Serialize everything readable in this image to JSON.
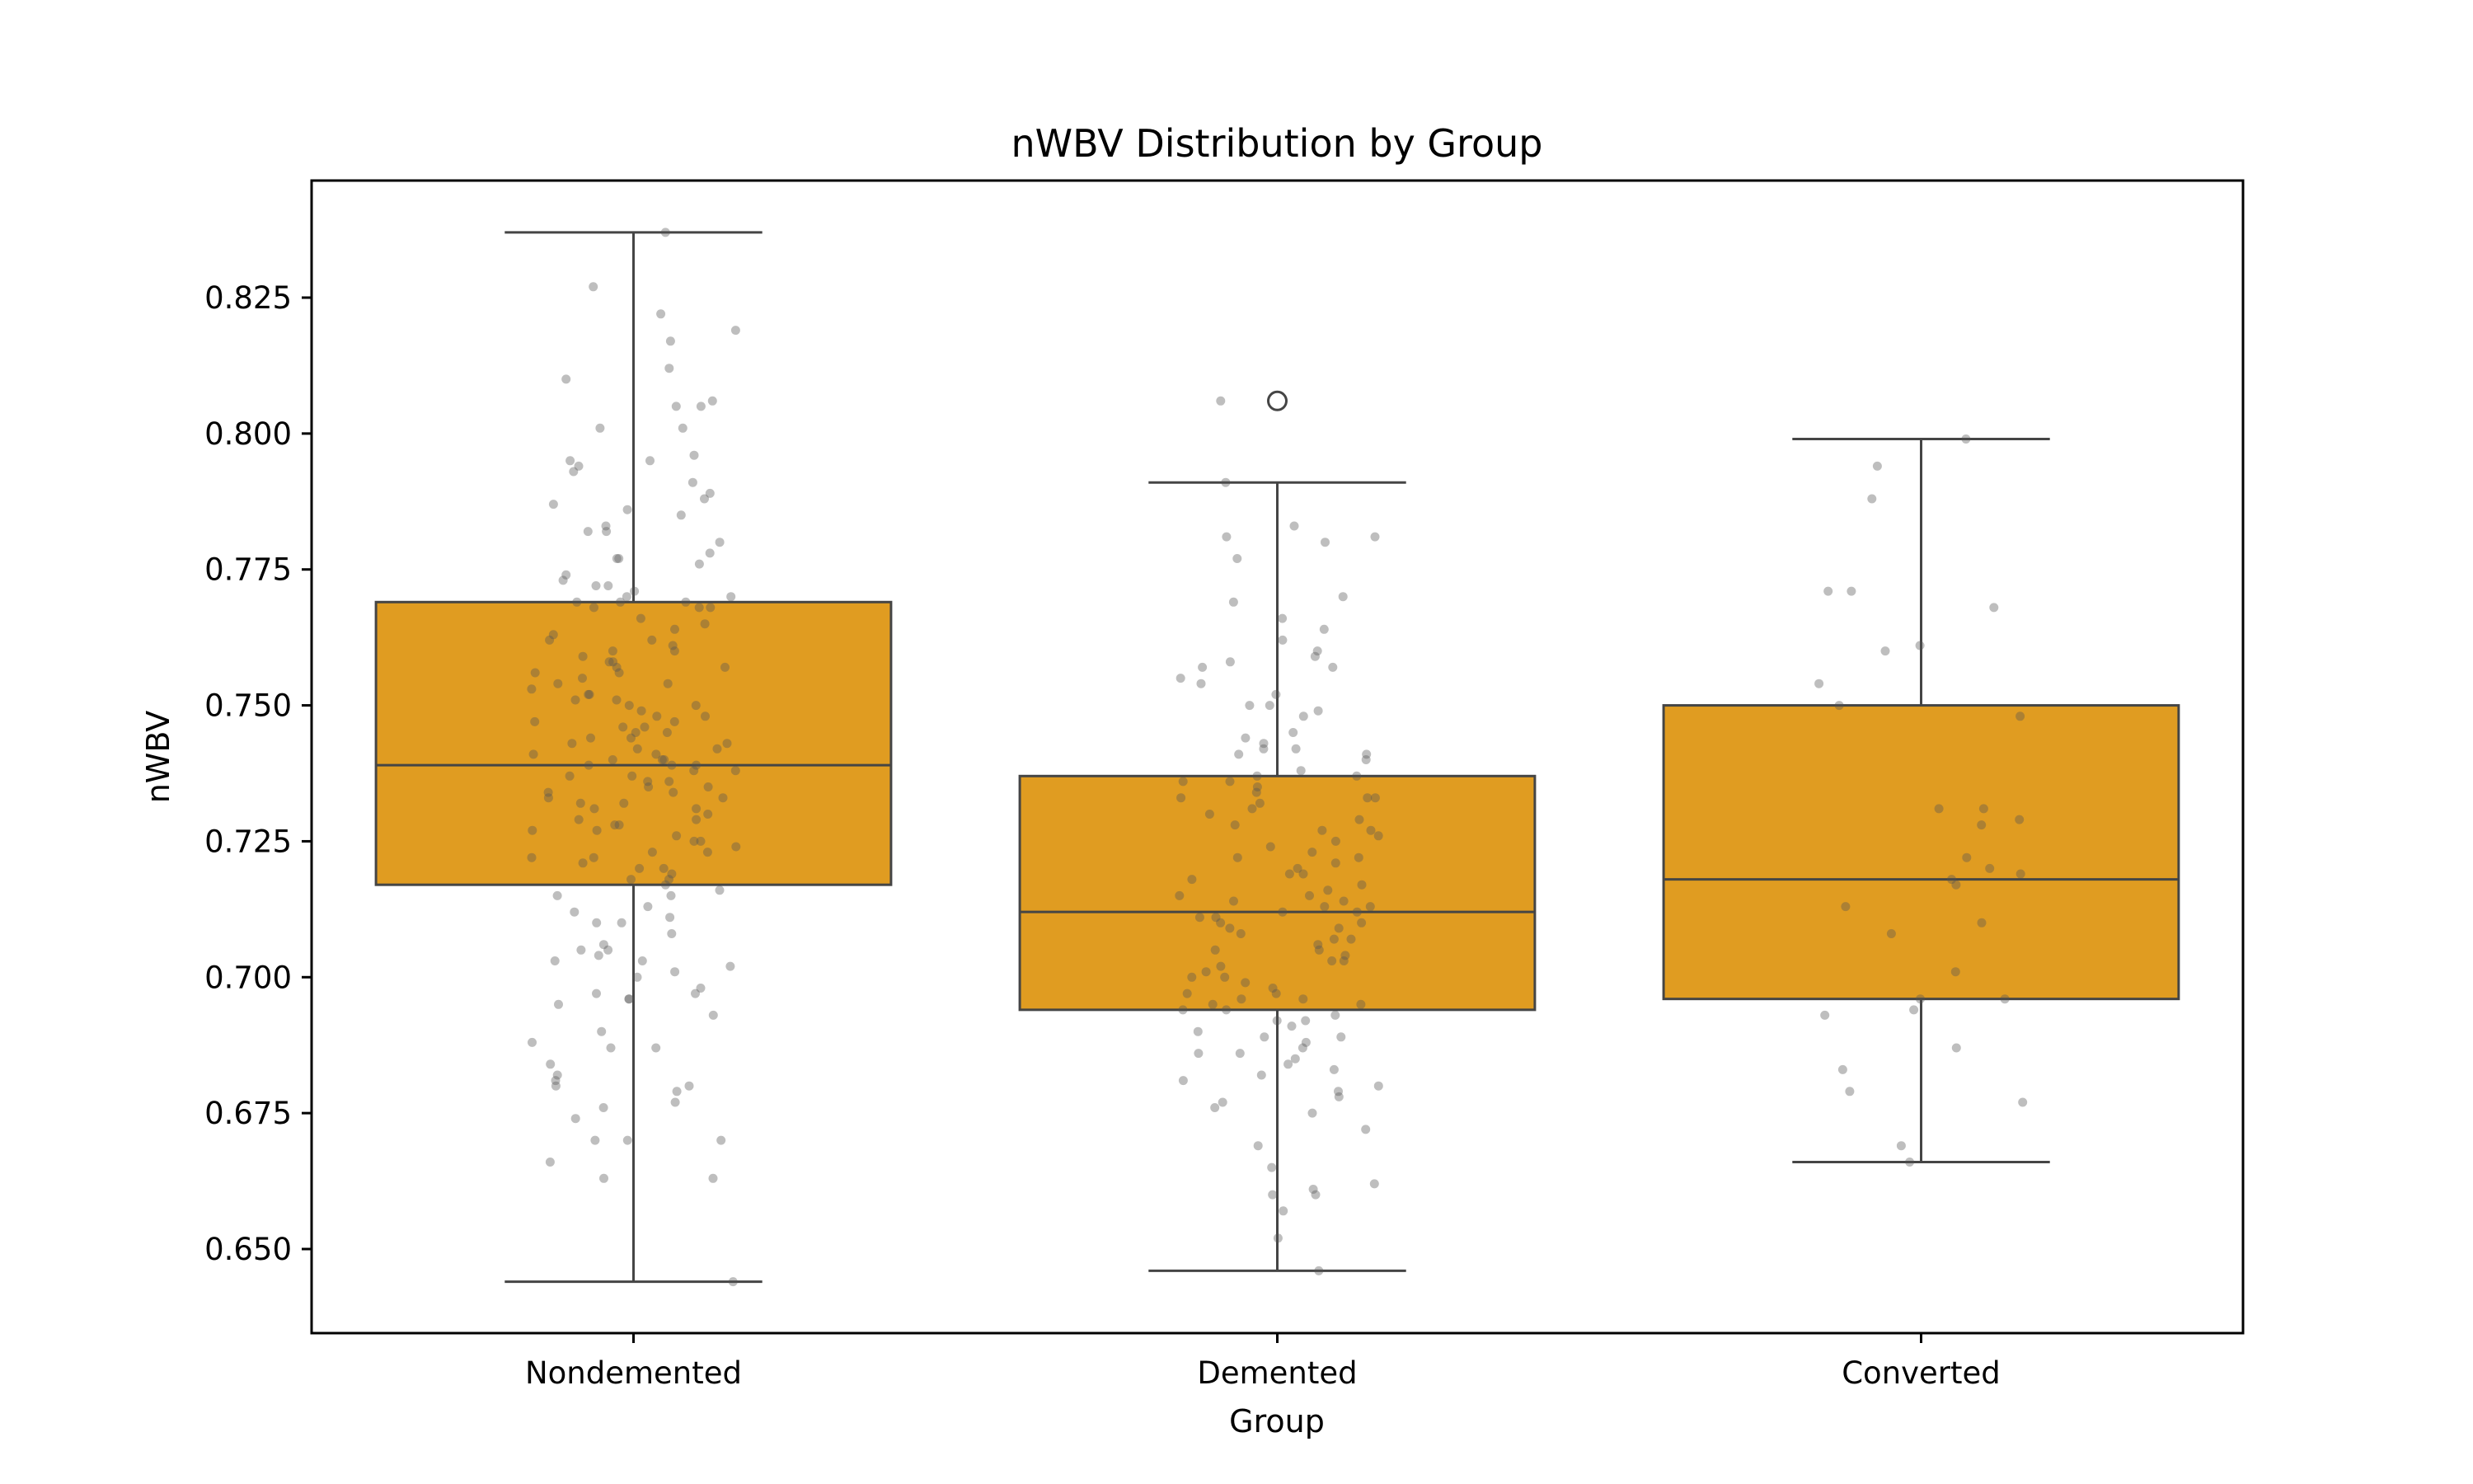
{
  "chart_data": {
    "type": "box",
    "title": "nWBV Distribution by Group",
    "xlabel": "Group",
    "ylabel": "nWBV",
    "categories": [
      "Nondemented",
      "Demented",
      "Converted"
    ],
    "yticks": [
      "0.650",
      "0.675",
      "0.700",
      "0.725",
      "0.750",
      "0.775",
      "0.800",
      "0.825"
    ],
    "ylim": [
      0.633,
      0.845
    ],
    "grid": false,
    "colors": {
      "box_fill": "#e09c21",
      "box_edge": "#454545",
      "point": "#555555",
      "frame": "#000000"
    },
    "boxes": [
      {
        "name": "Nondemented",
        "whisker_low": 0.644,
        "q1": 0.717,
        "median": 0.739,
        "q3": 0.769,
        "whisker_high": 0.837,
        "outliers": []
      },
      {
        "name": "Demented",
        "whisker_low": 0.646,
        "q1": 0.694,
        "median": 0.712,
        "q3": 0.737,
        "whisker_high": 0.791,
        "outliers": [
          0.806
        ]
      },
      {
        "name": "Converted",
        "whisker_low": 0.666,
        "q1": 0.696,
        "median": 0.718,
        "q3": 0.75,
        "whisker_high": 0.799,
        "outliers": []
      }
    ],
    "points": [
      [
        0.837,
        0.827,
        0.822,
        0.819,
        0.817,
        0.812,
        0.81,
        0.806,
        0.805,
        0.805,
        0.801,
        0.801,
        0.796,
        0.795,
        0.795,
        0.794,
        0.793,
        0.791,
        0.789,
        0.788,
        0.787,
        0.786,
        0.785,
        0.783,
        0.782,
        0.782,
        0.78,
        0.778,
        0.777,
        0.777,
        0.776,
        0.774,
        0.773,
        0.772,
        0.772,
        0.771,
        0.77,
        0.77,
        0.769,
        0.769,
        0.769,
        0.768,
        0.768,
        0.768,
        0.766,
        0.765,
        0.764,
        0.763,
        0.762,
        0.762,
        0.761,
        0.76,
        0.76,
        0.759,
        0.758,
        0.758,
        0.757,
        0.757,
        0.756,
        0.756,
        0.755,
        0.754,
        0.754,
        0.753,
        0.752,
        0.752,
        0.751,
        0.751,
        0.75,
        0.75,
        0.749,
        0.748,
        0.748,
        0.747,
        0.747,
        0.746,
        0.746,
        0.745,
        0.745,
        0.744,
        0.744,
        0.743,
        0.743,
        0.742,
        0.742,
        0.741,
        0.741,
        0.74,
        0.74,
        0.74,
        0.739,
        0.739,
        0.739,
        0.738,
        0.738,
        0.737,
        0.737,
        0.736,
        0.736,
        0.735,
        0.735,
        0.734,
        0.734,
        0.733,
        0.733,
        0.732,
        0.732,
        0.731,
        0.731,
        0.73,
        0.729,
        0.729,
        0.728,
        0.728,
        0.727,
        0.727,
        0.726,
        0.725,
        0.725,
        0.724,
        0.723,
        0.723,
        0.722,
        0.722,
        0.721,
        0.72,
        0.72,
        0.719,
        0.718,
        0.718,
        0.717,
        0.716,
        0.715,
        0.715,
        0.713,
        0.712,
        0.711,
        0.71,
        0.71,
        0.708,
        0.706,
        0.705,
        0.705,
        0.704,
        0.703,
        0.703,
        0.702,
        0.701,
        0.7,
        0.698,
        0.697,
        0.697,
        0.696,
        0.696,
        0.695,
        0.693,
        0.69,
        0.688,
        0.687,
        0.687,
        0.684,
        0.682,
        0.681,
        0.68,
        0.68,
        0.679,
        0.677,
        0.676,
        0.674,
        0.67,
        0.67,
        0.67,
        0.666,
        0.663,
        0.663,
        0.644
      ],
      [
        0.806,
        0.791,
        0.783,
        0.781,
        0.781,
        0.78,
        0.777,
        0.77,
        0.769,
        0.766,
        0.764,
        0.762,
        0.76,
        0.759,
        0.758,
        0.757,
        0.757,
        0.755,
        0.754,
        0.752,
        0.75,
        0.75,
        0.749,
        0.748,
        0.745,
        0.744,
        0.743,
        0.742,
        0.742,
        0.741,
        0.741,
        0.74,
        0.738,
        0.737,
        0.737,
        0.736,
        0.736,
        0.735,
        0.734,
        0.733,
        0.733,
        0.733,
        0.732,
        0.731,
        0.73,
        0.729,
        0.728,
        0.727,
        0.727,
        0.726,
        0.725,
        0.724,
        0.723,
        0.722,
        0.722,
        0.721,
        0.72,
        0.719,
        0.719,
        0.718,
        0.717,
        0.716,
        0.715,
        0.715,
        0.714,
        0.714,
        0.713,
        0.713,
        0.712,
        0.712,
        0.711,
        0.711,
        0.71,
        0.71,
        0.709,
        0.709,
        0.708,
        0.707,
        0.707,
        0.706,
        0.705,
        0.705,
        0.704,
        0.703,
        0.703,
        0.702,
        0.701,
        0.7,
        0.7,
        0.699,
        0.698,
        0.697,
        0.697,
        0.696,
        0.696,
        0.695,
        0.695,
        0.694,
        0.694,
        0.693,
        0.692,
        0.692,
        0.691,
        0.69,
        0.689,
        0.689,
        0.688,
        0.687,
        0.686,
        0.686,
        0.685,
        0.684,
        0.683,
        0.682,
        0.681,
        0.68,
        0.679,
        0.678,
        0.677,
        0.676,
        0.675,
        0.672,
        0.669,
        0.665,
        0.662,
        0.661,
        0.66,
        0.66,
        0.657,
        0.652,
        0.646
      ],
      [
        0.799,
        0.794,
        0.788,
        0.771,
        0.771,
        0.768,
        0.761,
        0.76,
        0.754,
        0.75,
        0.748,
        0.731,
        0.731,
        0.729,
        0.728,
        0.722,
        0.72,
        0.719,
        0.718,
        0.717,
        0.713,
        0.71,
        0.708,
        0.701,
        0.696,
        0.696,
        0.694,
        0.693,
        0.687,
        0.683,
        0.679,
        0.677,
        0.669,
        0.666
      ]
    ]
  }
}
